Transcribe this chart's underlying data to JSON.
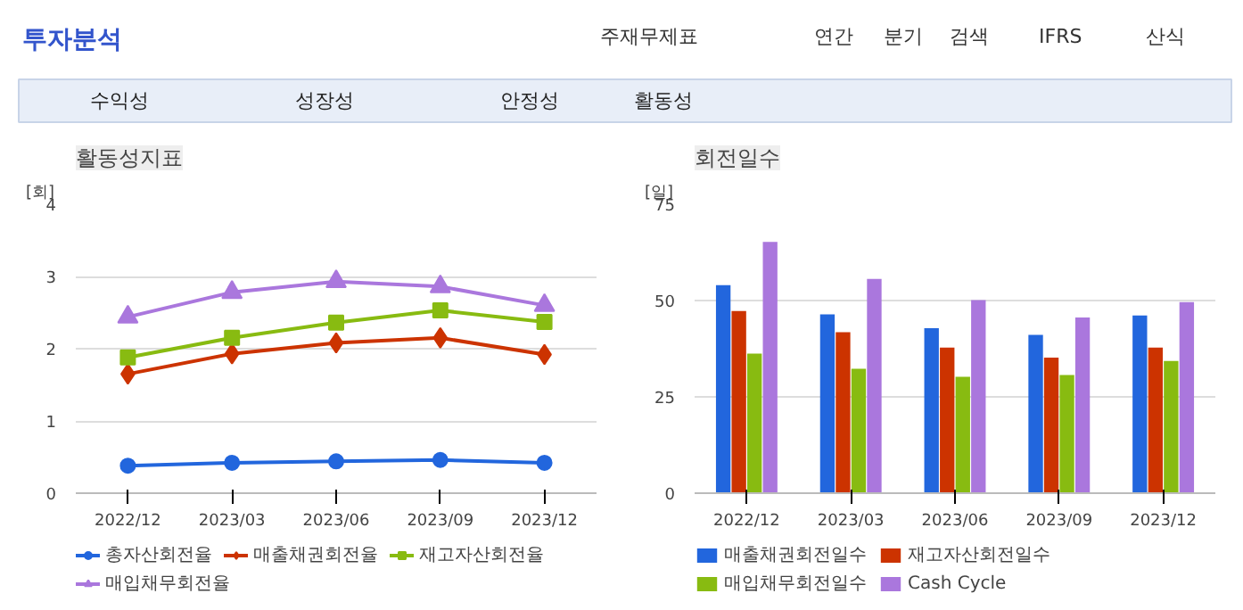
{
  "chart_data": [
    {
      "type": "other",
      "title": "투자분석",
      "annotations": [
        "주재무제표",
        "연간",
        "분기",
        "검색",
        "IFRS",
        "산식",
        "수익성",
        "성장성",
        "안정성",
        "활동성"
      ]
    },
    {
      "type": "line",
      "title": "활동성지표",
      "ylabel": "[회]",
      "categories": [
        "2022/12",
        "2023/03",
        "2023/06",
        "2023/09",
        "2023/12"
      ],
      "ylim": [
        0,
        4
      ],
      "yticks": [
        0,
        1,
        2,
        3,
        4
      ],
      "grid": "y",
      "legend": "bottom",
      "series": [
        {
          "name": "총자산회전율",
          "color": "#2266dd",
          "marker": "circle",
          "values": [
            0.38,
            0.42,
            0.44,
            0.46,
            0.42
          ]
        },
        {
          "name": "매출채권회전율",
          "color": "#cc3300",
          "marker": "diamond",
          "values": [
            1.65,
            1.93,
            2.08,
            2.15,
            1.92
          ]
        },
        {
          "name": "재고자산회전율",
          "color": "#88bb11",
          "marker": "square",
          "values": [
            1.88,
            2.15,
            2.36,
            2.53,
            2.37
          ]
        },
        {
          "name": "매입채무회전율",
          "color": "#aa77dd",
          "marker": "triangle",
          "values": [
            2.44,
            2.78,
            2.93,
            2.86,
            2.6
          ]
        }
      ]
    },
    {
      "type": "bar",
      "title": "회전일수",
      "ylabel": "[일]",
      "categories": [
        "2022/12",
        "2023/03",
        "2023/06",
        "2023/09",
        "2023/12"
      ],
      "ylim": [
        0,
        75
      ],
      "yticks": [
        0,
        25,
        50,
        75
      ],
      "grid": "y",
      "legend": "bottom",
      "series": [
        {
          "name": "매출채권회전일수",
          "color": "#2266dd",
          "values": [
            54,
            46.4,
            42.8,
            41.1,
            46.1
          ]
        },
        {
          "name": "재고자산회전일수",
          "color": "#cc3300",
          "values": [
            47.3,
            41.8,
            37.8,
            35.2,
            37.8
          ]
        },
        {
          "name": "매입채무회전일수",
          "color": "#88bb11",
          "values": [
            36.2,
            32.3,
            30.2,
            30.7,
            34.3
          ]
        },
        {
          "name": "Cash Cycle",
          "color": "#aa77dd",
          "values": [
            65.2,
            55.6,
            50.1,
            45.6,
            49.6
          ]
        }
      ]
    }
  ]
}
